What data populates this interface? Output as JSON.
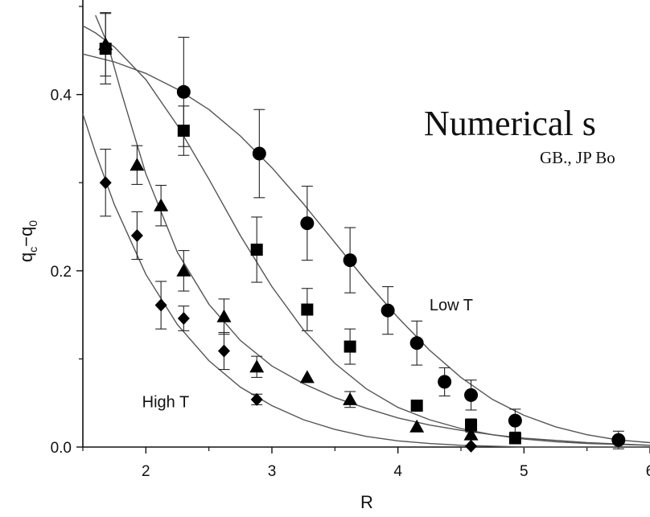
{
  "overlay": {
    "title": "Numerical s",
    "subtitle": "GB., JP Bo"
  },
  "chart_data": {
    "type": "scatter",
    "xlabel": "R",
    "ylabel": "q₀−q₀",
    "ylabel_parts": {
      "q": "q",
      "sub_c": "c",
      "minus": "−",
      "sub_0": "0"
    },
    "xlim": [
      1.5,
      6.0
    ],
    "ylim": [
      0.0,
      0.5
    ],
    "x_ticks": [
      2,
      3,
      4,
      5,
      6
    ],
    "y_ticks": [
      0.0,
      0.2,
      0.4
    ],
    "x_tick_labels": [
      "2",
      "3",
      "4",
      "5",
      "6"
    ],
    "y_tick_labels": [
      "0.0",
      "0.2",
      "0.4"
    ],
    "grid": false,
    "annotations": [
      {
        "text": "Low T",
        "x": 4.25,
        "y": 0.155
      },
      {
        "text": "High T",
        "x": 1.97,
        "y": 0.045
      }
    ],
    "series": [
      {
        "marker": "circle",
        "points": [
          {
            "x": 2.3,
            "y": 0.403,
            "err": 0.062
          },
          {
            "x": 2.9,
            "y": 0.333,
            "err": 0.05
          },
          {
            "x": 3.28,
            "y": 0.254,
            "err": 0.042
          },
          {
            "x": 3.62,
            "y": 0.212,
            "err": 0.037
          },
          {
            "x": 3.92,
            "y": 0.155,
            "err": 0.027
          },
          {
            "x": 4.15,
            "y": 0.118,
            "err": 0.025
          },
          {
            "x": 4.37,
            "y": 0.074,
            "err": 0.016
          },
          {
            "x": 4.58,
            "y": 0.059,
            "err": 0.017
          },
          {
            "x": 4.93,
            "y": 0.03,
            "err": 0.013
          },
          {
            "x": 5.75,
            "y": 0.008,
            "err": 0.01
          }
        ],
        "fit": [
          [
            1.5,
            0.446
          ],
          [
            1.75,
            0.437
          ],
          [
            2.0,
            0.424
          ],
          [
            2.25,
            0.406
          ],
          [
            2.5,
            0.383
          ],
          [
            2.75,
            0.353
          ],
          [
            3.0,
            0.317
          ],
          [
            3.25,
            0.276
          ],
          [
            3.5,
            0.232
          ],
          [
            3.75,
            0.188
          ],
          [
            4.0,
            0.147
          ],
          [
            4.25,
            0.11
          ],
          [
            4.5,
            0.079
          ],
          [
            4.75,
            0.054
          ],
          [
            5.0,
            0.036
          ],
          [
            5.25,
            0.023
          ],
          [
            5.5,
            0.014
          ],
          [
            5.75,
            0.008
          ],
          [
            6.0,
            0.005
          ]
        ]
      },
      {
        "marker": "square",
        "points": [
          {
            "x": 1.68,
            "y": 0.452,
            "err": 0.04
          },
          {
            "x": 2.3,
            "y": 0.359,
            "err": 0.028
          },
          {
            "x": 2.88,
            "y": 0.224,
            "err": 0.037
          },
          {
            "x": 3.28,
            "y": 0.156,
            "err": 0.024
          },
          {
            "x": 3.62,
            "y": 0.114,
            "err": 0.02
          },
          {
            "x": 4.15,
            "y": 0.047,
            "err": 0.0
          },
          {
            "x": 4.58,
            "y": 0.025,
            "err": 0.007
          },
          {
            "x": 4.93,
            "y": 0.01,
            "err": 0.003
          }
        ],
        "fit": [
          [
            1.5,
            0.478
          ],
          [
            1.6,
            0.47
          ],
          [
            1.75,
            0.454
          ],
          [
            2.0,
            0.417
          ],
          [
            2.25,
            0.365
          ],
          [
            2.5,
            0.304
          ],
          [
            2.75,
            0.24
          ],
          [
            3.0,
            0.182
          ],
          [
            3.25,
            0.133
          ],
          [
            3.5,
            0.095
          ],
          [
            3.75,
            0.066
          ],
          [
            4.0,
            0.045
          ],
          [
            4.25,
            0.031
          ],
          [
            4.5,
            0.021
          ],
          [
            4.75,
            0.014
          ],
          [
            5.0,
            0.009
          ],
          [
            5.25,
            0.006
          ],
          [
            5.5,
            0.004
          ],
          [
            6.0,
            0.002
          ]
        ]
      },
      {
        "marker": "triangle",
        "points": [
          {
            "x": 1.68,
            "y": 0.457,
            "err": 0.036
          },
          {
            "x": 1.93,
            "y": 0.32,
            "err": 0.022
          },
          {
            "x": 2.12,
            "y": 0.274,
            "err": 0.023
          },
          {
            "x": 2.3,
            "y": 0.2,
            "err": 0.023
          },
          {
            "x": 2.62,
            "y": 0.148,
            "err": 0.02
          },
          {
            "x": 2.88,
            "y": 0.091,
            "err": 0.012
          },
          {
            "x": 3.28,
            "y": 0.079,
            "err": 0.0
          },
          {
            "x": 3.62,
            "y": 0.054,
            "err": 0.009
          },
          {
            "x": 4.15,
            "y": 0.023,
            "err": 0.0
          },
          {
            "x": 4.58,
            "y": 0.014,
            "err": 0.003
          }
        ],
        "fit": [
          [
            1.6,
            0.49
          ],
          [
            1.7,
            0.456
          ],
          [
            1.8,
            0.405
          ],
          [
            2.0,
            0.31
          ],
          [
            2.25,
            0.221
          ],
          [
            2.5,
            0.162
          ],
          [
            2.75,
            0.121
          ],
          [
            3.0,
            0.092
          ],
          [
            3.25,
            0.072
          ],
          [
            3.5,
            0.056
          ],
          [
            3.75,
            0.044
          ],
          [
            4.0,
            0.033
          ],
          [
            4.25,
            0.025
          ],
          [
            4.5,
            0.019
          ],
          [
            4.75,
            0.014
          ],
          [
            5.0,
            0.01
          ],
          [
            5.5,
            0.005
          ],
          [
            6.0,
            0.002
          ]
        ]
      },
      {
        "marker": "diamond",
        "points": [
          {
            "x": 1.68,
            "y": 0.3,
            "err": 0.038
          },
          {
            "x": 1.93,
            "y": 0.24,
            "err": 0.027
          },
          {
            "x": 2.12,
            "y": 0.161,
            "err": 0.027
          },
          {
            "x": 2.3,
            "y": 0.146,
            "err": 0.014
          },
          {
            "x": 2.62,
            "y": 0.109,
            "err": 0.021
          },
          {
            "x": 2.88,
            "y": 0.054,
            "err": 0.006
          },
          {
            "x": 4.58,
            "y": 0.001,
            "err": 0.0
          }
        ],
        "fit": [
          [
            1.5,
            0.378
          ],
          [
            1.6,
            0.334
          ],
          [
            1.75,
            0.275
          ],
          [
            2.0,
            0.196
          ],
          [
            2.25,
            0.139
          ],
          [
            2.5,
            0.098
          ],
          [
            2.75,
            0.068
          ],
          [
            3.0,
            0.047
          ],
          [
            3.25,
            0.031
          ],
          [
            3.5,
            0.02
          ],
          [
            3.75,
            0.012
          ],
          [
            4.0,
            0.007
          ],
          [
            4.25,
            0.004
          ],
          [
            4.5,
            0.002
          ],
          [
            5.0,
            0.0
          ],
          [
            6.0,
            0.0
          ]
        ]
      }
    ]
  }
}
